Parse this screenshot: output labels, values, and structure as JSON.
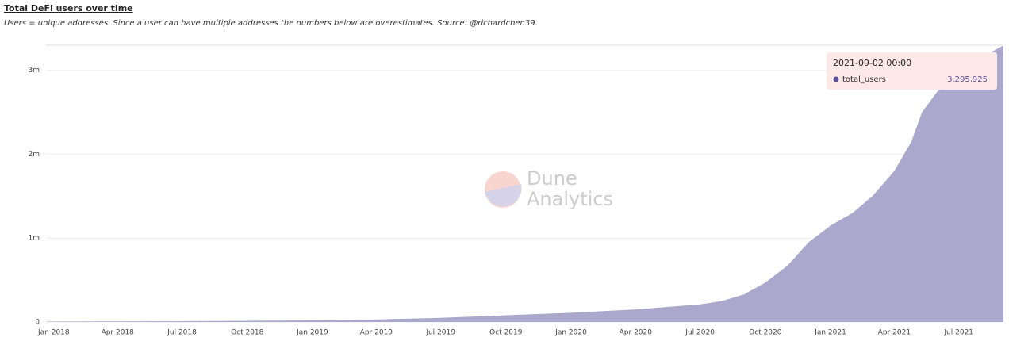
{
  "chart_data": {
    "type": "area",
    "title": "Total DeFi users over time",
    "subtitle": "Users = unique addresses. Since a user can have multiple addresses the numbers below are overestimates. Source: @richardchen39",
    "x": [
      "2017-12-21",
      "2018-04-01",
      "2018-07-01",
      "2018-10-01",
      "2019-01-01",
      "2019-04-01",
      "2019-07-01",
      "2019-10-01",
      "2020-01-01",
      "2020-04-01",
      "2020-07-01",
      "2020-08-01",
      "2020-09-01",
      "2020-10-01",
      "2020-11-01",
      "2020-12-01",
      "2021-01-01",
      "2021-02-01",
      "2021-03-01",
      "2021-04-01",
      "2021-04-25",
      "2021-05-10",
      "2021-06-01",
      "2021-07-01",
      "2021-08-01",
      "2021-09-02"
    ],
    "series": [
      {
        "name": "total_users",
        "color": "#aaa8cc",
        "values": [
          5000,
          7000,
          10000,
          14000,
          20000,
          30000,
          50000,
          80000,
          110000,
          150000,
          210000,
          250000,
          330000,
          470000,
          670000,
          950000,
          1150000,
          1300000,
          1500000,
          1800000,
          2150000,
          2500000,
          2750000,
          2950000,
          3150000,
          3295925
        ]
      }
    ],
    "xlim": [
      "2017-12-21",
      "2021-09-02"
    ],
    "xticks": [
      {
        "value": "2018-01-01",
        "label": "Jan 2018"
      },
      {
        "value": "2018-04-01",
        "label": "Apr 2018"
      },
      {
        "value": "2018-07-01",
        "label": "Jul 2018"
      },
      {
        "value": "2018-10-01",
        "label": "Oct 2018"
      },
      {
        "value": "2019-01-01",
        "label": "Jan 2019"
      },
      {
        "value": "2019-04-01",
        "label": "Apr 2019"
      },
      {
        "value": "2019-07-01",
        "label": "Jul 2019"
      },
      {
        "value": "2019-10-01",
        "label": "Oct 2019"
      },
      {
        "value": "2020-01-01",
        "label": "Jan 2020"
      },
      {
        "value": "2020-04-01",
        "label": "Apr 2020"
      },
      {
        "value": "2020-07-01",
        "label": "Jul 2020"
      },
      {
        "value": "2020-10-01",
        "label": "Oct 2020"
      },
      {
        "value": "2021-01-01",
        "label": "Jan 2021"
      },
      {
        "value": "2021-04-01",
        "label": "Apr 2021"
      },
      {
        "value": "2021-07-01",
        "label": "Jul 2021"
      }
    ],
    "ylim": [
      0,
      3300000
    ],
    "yticks": [
      0,
      {
        "value": 1000000,
        "label": "1m"
      },
      {
        "value": 2000000,
        "label": "2m"
      },
      {
        "value": 3000000,
        "label": "3m"
      }
    ],
    "grid": true,
    "tooltip": {
      "date": "2021-09-02 00:00",
      "value_label": "3,295,925"
    },
    "watermark": [
      "Dune",
      "Analytics"
    ]
  }
}
